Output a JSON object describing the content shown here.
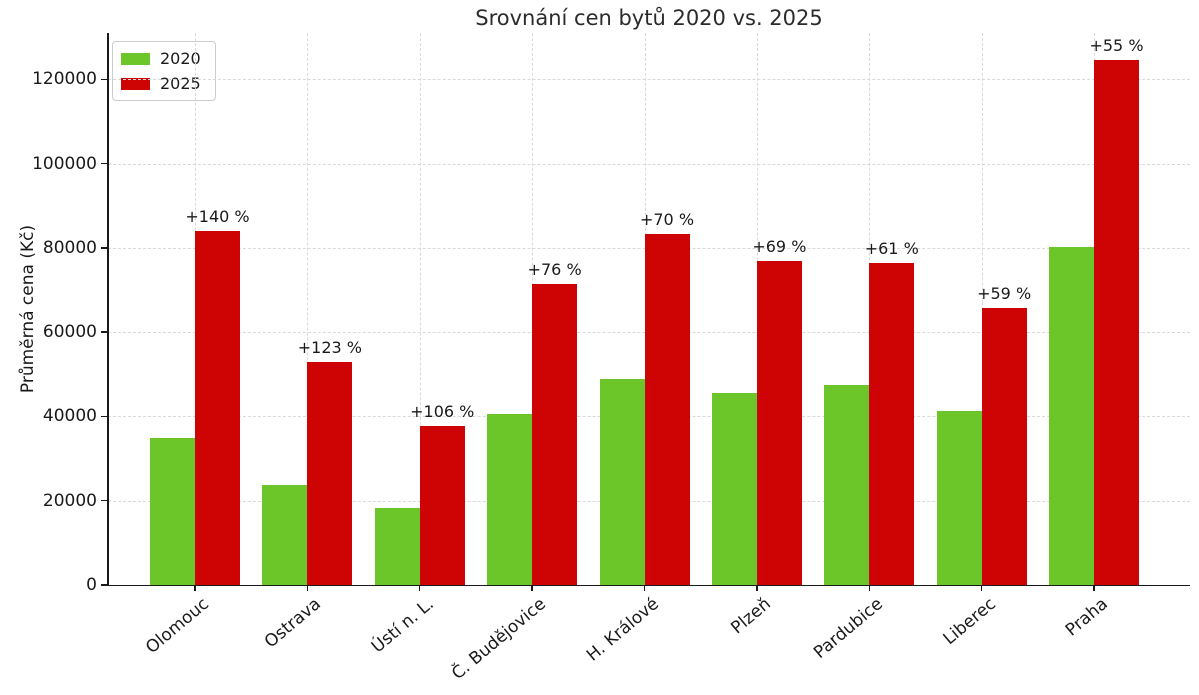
{
  "chart_data": {
    "type": "bar",
    "title": "Srovnání cen bytů 2020 vs. 2025",
    "ylabel": "Průměrná cena (Kč)",
    "xlabel": "",
    "categories": [
      "Olomouc",
      "Ostrava",
      "Ústí n. L.",
      "Č. Budějovice",
      "H. Králové",
      "Plzeň",
      "Pardubice",
      "Liberec",
      "Praha"
    ],
    "series": [
      {
        "name": "2020",
        "color": "#6CC62A",
        "values": [
          35000,
          23700,
          18300,
          40600,
          49000,
          45500,
          47500,
          41400,
          80300
        ]
      },
      {
        "name": "2025",
        "color": "#CE0404",
        "values": [
          84000,
          52900,
          37700,
          71500,
          83300,
          76900,
          76500,
          65800,
          124500
        ]
      }
    ],
    "annotations": [
      "+140 %",
      "+123 %",
      "+106 %",
      "+76 %",
      "+70 %",
      "+69 %",
      "+61 %",
      "+59 %",
      "+55 %"
    ],
    "yticks": [
      0,
      20000,
      40000,
      60000,
      80000,
      100000,
      120000
    ],
    "ylim": [
      0,
      131000
    ],
    "grid": "dashed-both-axes",
    "legend_position": "upper-left"
  }
}
